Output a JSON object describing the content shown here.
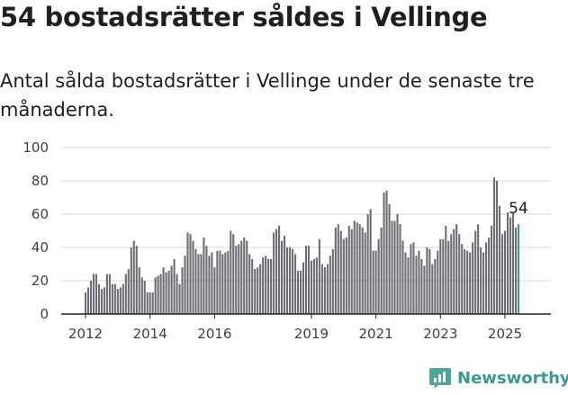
{
  "title": "54 bostadsrätter såldes i Vellinge",
  "subtitle": "Antal sålda bostadsrätter i Vellinge under de senaste tre månaderna.",
  "logo_text": "Newsworthy",
  "colors": {
    "bar": "#6e6d73",
    "highlight": "#2a9e92",
    "axis": "#222222",
    "grid": "#d9d9d9",
    "brand": "#3c9a92"
  },
  "chart_data": {
    "type": "bar",
    "title": "54 bostadsrätter såldes i Vellinge",
    "subtitle": "Antal sålda bostadsrätter i Vellinge under de senaste tre månaderna.",
    "xlabel": "",
    "ylabel": "",
    "ylim": [
      0,
      100
    ],
    "yticks": [
      0,
      20,
      40,
      60,
      80,
      100
    ],
    "xticks": [
      "2012",
      "2014",
      "2016",
      "2019",
      "2021",
      "2023",
      "2025"
    ],
    "grid": true,
    "x_start": "2012-01",
    "x_end": "2025-08",
    "highlight_last": true,
    "annotation": "54",
    "values": [
      13,
      16,
      20,
      24,
      24,
      18,
      15,
      16,
      24,
      24,
      18,
      18,
      15,
      16,
      18,
      24,
      27,
      40,
      44,
      41,
      28,
      22,
      20,
      13,
      13,
      13,
      22,
      23,
      24,
      28,
      25,
      26,
      29,
      33,
      24,
      18,
      28,
      35,
      49,
      48,
      44,
      39,
      36,
      36,
      46,
      41,
      35,
      37,
      28,
      38,
      38,
      36,
      37,
      38,
      50,
      48,
      41,
      42,
      44,
      46,
      44,
      36,
      33,
      27,
      28,
      30,
      34,
      35,
      33,
      33,
      49,
      51,
      53,
      44,
      47,
      40,
      40,
      39,
      36,
      26,
      26,
      31,
      41,
      41,
      32,
      33,
      34,
      45,
      30,
      28,
      30,
      35,
      39,
      52,
      54,
      50,
      45,
      46,
      53,
      51,
      56,
      55,
      54,
      52,
      49,
      60,
      63,
      38,
      38,
      45,
      52,
      73,
      74,
      66,
      56,
      56,
      60,
      54,
      44,
      37,
      34,
      42,
      43,
      35,
      38,
      33,
      29,
      40,
      39,
      30,
      33,
      38,
      45,
      45,
      53,
      44,
      48,
      51,
      54,
      48,
      42,
      39,
      38,
      37,
      43,
      50,
      54,
      40,
      37,
      43,
      46,
      53,
      82,
      80,
      65,
      48,
      50,
      61,
      58,
      61,
      52,
      54
    ]
  }
}
